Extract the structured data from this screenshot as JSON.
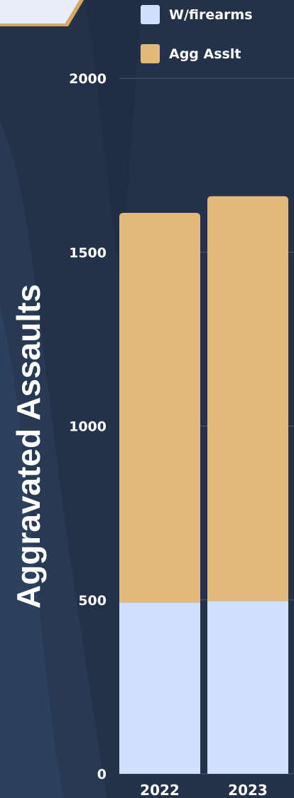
{
  "chart_data": {
    "type": "bar",
    "stacked": true,
    "categories": [
      "2022",
      "2023"
    ],
    "series": [
      {
        "name": "W/firearms",
        "values": [
          493,
          497
        ],
        "color": "#cfe1fc"
      },
      {
        "name": "Agg Asslt",
        "values": [
          1120,
          1164
        ],
        "color": "#e3b97a"
      }
    ],
    "ylabel": "Aggravated Assaults",
    "ylim": [
      0,
      2000
    ],
    "yticks": [
      "0",
      "500",
      "1000",
      "1500",
      "2000"
    ],
    "grid": true,
    "legend_position": "top-right"
  }
}
